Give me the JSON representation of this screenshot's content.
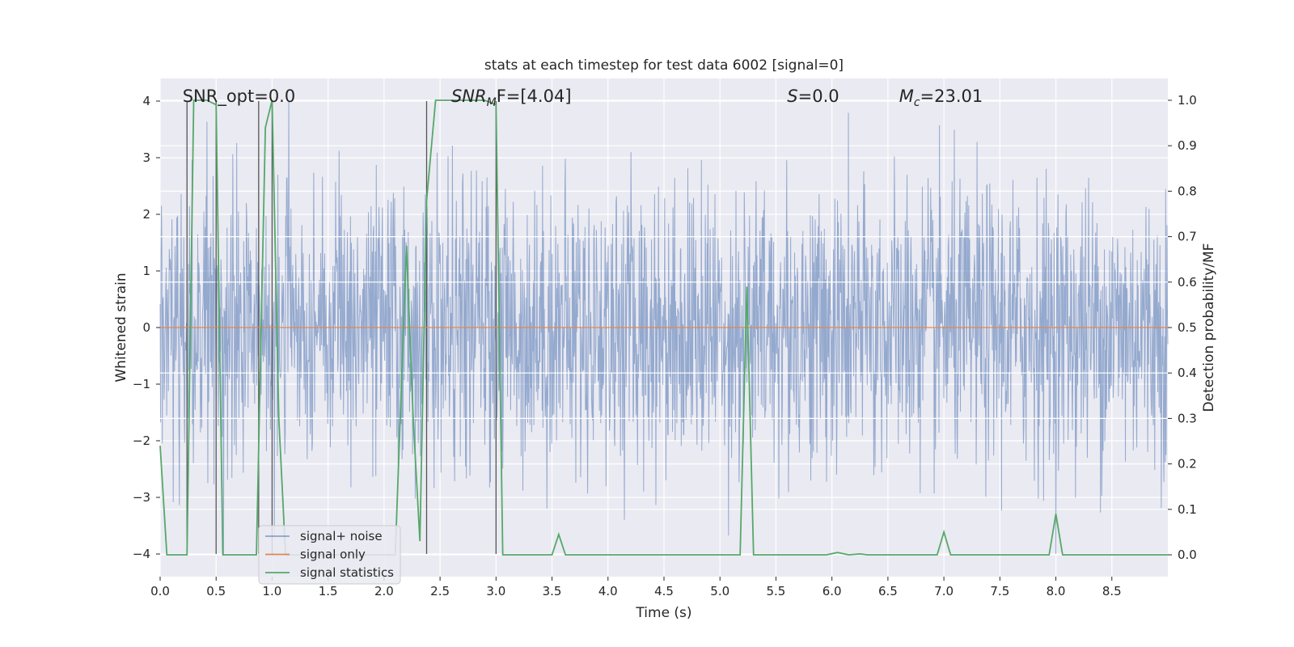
{
  "chart_data": {
    "type": "line",
    "title": "stats at each timestep for test data 6002 [signal=0]",
    "xlabel": "Time (s)",
    "ylabel_left": "Whitened strain",
    "ylabel_right": "Detection probability/MF",
    "xlim": [
      0.0,
      9.0
    ],
    "ylim_left": [
      -4.4,
      4.4
    ],
    "ylim_right": [
      -0.048,
      1.048
    ],
    "grid": true,
    "x_ticks": [
      0.0,
      0.5,
      1.0,
      1.5,
      2.0,
      2.5,
      3.0,
      3.5,
      4.0,
      4.5,
      5.0,
      5.5,
      6.0,
      6.5,
      7.0,
      7.5,
      8.0,
      8.5
    ],
    "x_tick_labels": [
      "0.0",
      "0.5",
      "1.0",
      "1.5",
      "2.0",
      "2.5",
      "3.0",
      "3.5",
      "4.0",
      "4.5",
      "5.0",
      "5.5",
      "6.0",
      "6.5",
      "7.0",
      "7.5",
      "8.0",
      "8.5"
    ],
    "y_left_ticks": [
      -4,
      -3,
      -2,
      -1,
      0,
      1,
      2,
      3,
      4
    ],
    "y_left_tick_labels": [
      "−4",
      "−3",
      "−2",
      "−1",
      "0",
      "1",
      "2",
      "3",
      "4"
    ],
    "y_right_ticks": [
      0.0,
      0.1,
      0.2,
      0.3,
      0.4,
      0.5,
      0.6,
      0.7,
      0.8,
      0.9,
      1.0
    ],
    "y_right_tick_labels": [
      "0.0",
      "0.1",
      "0.2",
      "0.3",
      "0.4",
      "0.5",
      "0.6",
      "0.7",
      "0.8",
      "0.9",
      "1.0"
    ],
    "annotations": [
      {
        "name": "snr-opt",
        "prefix": "SNR_opt=0.0",
        "var": "",
        "sub": "",
        "suffix": "",
        "x": 0.2,
        "y": 4.0
      },
      {
        "name": "snr-mf",
        "prefix": "",
        "var": "SNR",
        "sub": "M",
        "suffix": "F=[4.04]",
        "x": 2.6,
        "y": 4.0
      },
      {
        "name": "s-stat",
        "prefix": "",
        "var": "S",
        "sub": "",
        "suffix": "=0.0",
        "x": 5.6,
        "y": 4.0
      },
      {
        "name": "chirp-mass",
        "prefix": "",
        "var": "M",
        "sub": "c",
        "suffix": "=23.01",
        "x": 6.6,
        "y": 4.0
      }
    ],
    "vlines": {
      "color": "#555555",
      "ymin": -4.0,
      "ymax": 4.0,
      "x": [
        0.24,
        0.5,
        0.88,
        1.0,
        2.38,
        3.0
      ]
    },
    "series": [
      {
        "name": "signal+ noise",
        "color": "#4c72b0",
        "axis": "left",
        "style": "dense-noise",
        "duration": 9.0,
        "n_samples": 2304,
        "amplitude_std": 1.0,
        "value_range": [
          -4.0,
          4.0
        ]
      },
      {
        "name": "signal only",
        "color": "#dd8452",
        "axis": "left",
        "style": "line",
        "x": [
          0.0,
          9.0
        ],
        "y": [
          0.0,
          0.0
        ]
      },
      {
        "name": "signal statistics",
        "color": "#55a868",
        "axis": "right",
        "style": "line",
        "x": [
          0.0,
          0.06,
          0.12,
          0.18,
          0.24,
          0.3,
          0.36,
          0.42,
          0.5,
          0.56,
          0.62,
          0.7,
          0.78,
          0.86,
          0.94,
          1.0,
          1.06,
          1.12,
          1.2,
          1.3,
          1.4,
          1.5,
          1.6,
          1.7,
          1.8,
          1.9,
          2.0,
          2.1,
          2.2,
          2.26,
          2.32,
          2.38,
          2.46,
          2.5,
          2.6,
          2.7,
          2.8,
          2.9,
          3.0,
          3.06,
          3.14,
          3.2,
          3.3,
          3.4,
          3.5,
          3.56,
          3.62,
          3.7,
          3.8,
          4.0,
          4.2,
          4.4,
          4.6,
          4.8,
          5.0,
          5.18,
          5.24,
          5.3,
          5.4,
          5.6,
          5.8,
          5.95,
          6.05,
          6.15,
          6.25,
          6.32,
          6.4,
          6.6,
          6.8,
          6.94,
          7.0,
          7.06,
          7.2,
          7.4,
          7.6,
          7.8,
          7.94,
          8.0,
          8.06,
          8.2,
          8.4,
          8.6,
          8.8,
          9.0
        ],
        "y": [
          0.24,
          0.0,
          0.0,
          0.0,
          0.0,
          1.0,
          1.0,
          1.0,
          0.99,
          0.0,
          0.0,
          0.0,
          0.0,
          0.0,
          0.94,
          1.0,
          0.3,
          0.0,
          0.0,
          0.0,
          0.0,
          0.0,
          0.0,
          0.0,
          0.0,
          0.0,
          0.0,
          0.0,
          0.68,
          0.3,
          0.03,
          0.78,
          1.0,
          1.0,
          1.0,
          1.0,
          1.0,
          1.0,
          0.99,
          0.0,
          0.0,
          0.0,
          0.0,
          0.0,
          0.0,
          0.045,
          0.0,
          0.0,
          0.0,
          0.0,
          0.0,
          0.0,
          0.0,
          0.0,
          0.0,
          0.0,
          0.59,
          0.0,
          0.0,
          0.0,
          0.0,
          0.0,
          0.005,
          0.0,
          0.002,
          0.0,
          0.0,
          0.0,
          0.0,
          0.0,
          0.05,
          0.0,
          0.0,
          0.0,
          0.0,
          0.0,
          0.0,
          0.09,
          0.0,
          0.0,
          0.0,
          0.0,
          0.0,
          0.0
        ]
      }
    ],
    "legend": {
      "position": "lower-left",
      "entries": [
        "signal+ noise",
        "signal only",
        "signal statistics"
      ]
    }
  }
}
